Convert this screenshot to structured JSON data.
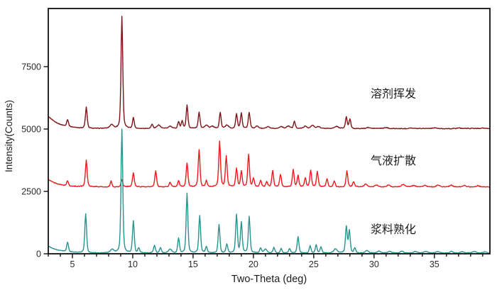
{
  "figure": {
    "background": "#ffffff",
    "axis_color": "#111111",
    "tick_label_color": "#2a2a2a"
  },
  "chart_data": {
    "type": "line",
    "variant": "xrd-powder-pattern",
    "title": "",
    "xlabel": "Two-Theta (deg)",
    "ylabel": "Intensity(Counts)",
    "xlim": [
      3,
      39.6
    ],
    "ylim": [
      0,
      9830
    ],
    "x_major_ticks": [
      5,
      10,
      15,
      20,
      25,
      30,
      35
    ],
    "x_minor_tick_step": 1,
    "y_ticks": [
      0,
      2500,
      5000,
      7500
    ],
    "grid": false,
    "legend_style": "inline-colored-annotations",
    "peak_width_deg": 0.085,
    "series": [
      {
        "name": "溶剂挥发",
        "color": "#7d1315",
        "label_color": "#8d4a3c",
        "label_x": 31.6,
        "label_y": 6420,
        "baseline": 5020,
        "left_edge_rise": 500,
        "noise": 13,
        "peaks": [
          [
            4.6,
            280
          ],
          [
            6.15,
            840
          ],
          [
            8.25,
            150
          ],
          [
            9.1,
            4480
          ],
          [
            10.05,
            430
          ],
          [
            11.6,
            170
          ],
          [
            12.15,
            140
          ],
          [
            13.1,
            90
          ],
          [
            13.8,
            280
          ],
          [
            14.1,
            300
          ],
          [
            14.5,
            930
          ],
          [
            15.5,
            640
          ],
          [
            16.1,
            130
          ],
          [
            16.6,
            80
          ],
          [
            17.25,
            650
          ],
          [
            17.8,
            140
          ],
          [
            18.6,
            580
          ],
          [
            19.0,
            600
          ],
          [
            19.65,
            640
          ],
          [
            20.3,
            90
          ],
          [
            21.2,
            70
          ],
          [
            22.3,
            80
          ],
          [
            22.9,
            90
          ],
          [
            23.4,
            280
          ],
          [
            24.3,
            90
          ],
          [
            24.9,
            130
          ],
          [
            25.4,
            80
          ],
          [
            26.9,
            80
          ],
          [
            27.7,
            460
          ],
          [
            28.0,
            380
          ],
          [
            29.5,
            40
          ],
          [
            31.0,
            35
          ],
          [
            33.0,
            30
          ],
          [
            35.0,
            30
          ],
          [
            37.0,
            25
          ],
          [
            39.0,
            25
          ]
        ]
      },
      {
        "name": "气液扩散",
        "color": "#f2181a",
        "label_color": "#f04a46",
        "label_x": 31.6,
        "label_y": 3740,
        "baseline": 2680,
        "left_edge_rise": 290,
        "noise": 15,
        "peaks": [
          [
            4.6,
            200
          ],
          [
            6.15,
            1060
          ],
          [
            8.2,
            230
          ],
          [
            9.1,
            290
          ],
          [
            10.05,
            560
          ],
          [
            11.9,
            650
          ],
          [
            13.1,
            180
          ],
          [
            13.8,
            240
          ],
          [
            14.5,
            950
          ],
          [
            15.5,
            1500
          ],
          [
            16.1,
            250
          ],
          [
            17.2,
            1820
          ],
          [
            17.75,
            1220
          ],
          [
            18.6,
            740
          ],
          [
            19.0,
            620
          ],
          [
            19.6,
            1290
          ],
          [
            20.0,
            350
          ],
          [
            20.6,
            250
          ],
          [
            21.1,
            200
          ],
          [
            21.6,
            650
          ],
          [
            22.25,
            500
          ],
          [
            23.3,
            700
          ],
          [
            23.7,
            450
          ],
          [
            24.3,
            350
          ],
          [
            24.75,
            650
          ],
          [
            25.3,
            600
          ],
          [
            26.1,
            320
          ],
          [
            26.7,
            250
          ],
          [
            27.75,
            640
          ],
          [
            28.3,
            200
          ],
          [
            29.3,
            100
          ],
          [
            30.2,
            80
          ],
          [
            31.2,
            70
          ],
          [
            32.4,
            90
          ],
          [
            33.3,
            60
          ],
          [
            34.2,
            60
          ],
          [
            35.3,
            70
          ],
          [
            36.4,
            60
          ],
          [
            37.5,
            60
          ],
          [
            38.6,
            50
          ]
        ]
      },
      {
        "name": "浆料熟化",
        "color": "#27928e",
        "label_color": "#3ba39e",
        "label_x": 31.6,
        "label_y": 980,
        "baseline": 30,
        "left_edge_rise": 290,
        "noise": 10,
        "peaks": [
          [
            4.6,
            380
          ],
          [
            6.1,
            1560
          ],
          [
            8.3,
            130
          ],
          [
            9.1,
            4950
          ],
          [
            10.05,
            1280
          ],
          [
            10.5,
            200
          ],
          [
            11.8,
            310
          ],
          [
            12.3,
            200
          ],
          [
            13.1,
            150
          ],
          [
            13.8,
            600
          ],
          [
            14.5,
            2400
          ],
          [
            15.55,
            1500
          ],
          [
            16.1,
            250
          ],
          [
            17.15,
            1140
          ],
          [
            17.8,
            350
          ],
          [
            18.6,
            1530
          ],
          [
            19.0,
            1220
          ],
          [
            19.65,
            1450
          ],
          [
            20.6,
            200
          ],
          [
            21.0,
            150
          ],
          [
            21.7,
            230
          ],
          [
            22.3,
            180
          ],
          [
            23.0,
            170
          ],
          [
            23.7,
            650
          ],
          [
            24.7,
            290
          ],
          [
            25.2,
            330
          ],
          [
            25.6,
            250
          ],
          [
            26.8,
            160
          ],
          [
            27.7,
            1060
          ],
          [
            27.95,
            900
          ],
          [
            28.4,
            200
          ],
          [
            29.4,
            100
          ],
          [
            30.4,
            70
          ],
          [
            31.3,
            60
          ],
          [
            32.3,
            80
          ],
          [
            33.4,
            60
          ],
          [
            34.3,
            60
          ],
          [
            35.3,
            60
          ],
          [
            36.4,
            70
          ],
          [
            37.3,
            50
          ],
          [
            38.3,
            60
          ],
          [
            39.2,
            50
          ]
        ]
      }
    ]
  }
}
